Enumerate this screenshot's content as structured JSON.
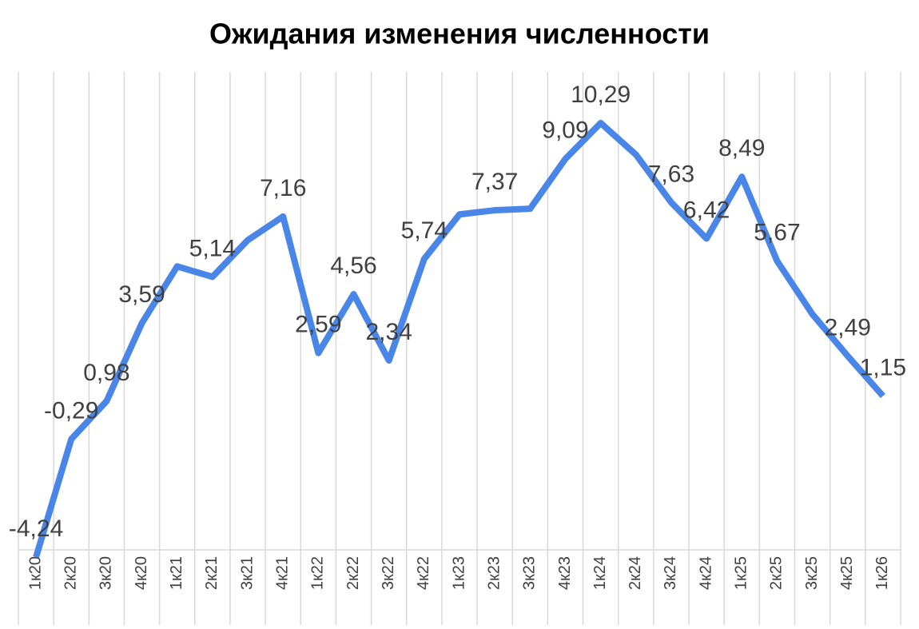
{
  "chart_data": {
    "type": "line",
    "title": "Ожидания изменения численности",
    "categories": [
      "1к20",
      "2к20",
      "3к20",
      "4к20",
      "1к21",
      "2к21",
      "3к21",
      "4к21",
      "1к22",
      "2к22",
      "3к22",
      "4к22",
      "1к23",
      "2к23",
      "3к23",
      "4к23",
      "1к24",
      "2к24",
      "3к24",
      "4к24",
      "1к25",
      "2к25",
      "3к25",
      "4к25",
      "1к26"
    ],
    "series": [
      {
        "color": "#4a86e8",
        "values": [
          -4.24,
          -0.29,
          0.98,
          3.59,
          5.49,
          5.14,
          6.37,
          7.16,
          2.59,
          4.56,
          2.34,
          5.74,
          7.23,
          7.37,
          7.42,
          9.09,
          10.29,
          9.23,
          7.63,
          6.42,
          8.49,
          5.67,
          3.89,
          2.49,
          1.15
        ],
        "value_labels": [
          "-4,24",
          "-0,29",
          "0,98",
          "3,59",
          null,
          "5,14",
          null,
          "7,16",
          "2,59",
          "4,56",
          "2,34",
          "5,74",
          null,
          "7,37",
          null,
          "9,09",
          "10,29",
          null,
          "7,63",
          "6,42",
          "8,49",
          "5,67",
          null,
          "2,49",
          "1,15"
        ]
      }
    ],
    "ylim": [
      -4,
      12
    ],
    "grid": true
  }
}
